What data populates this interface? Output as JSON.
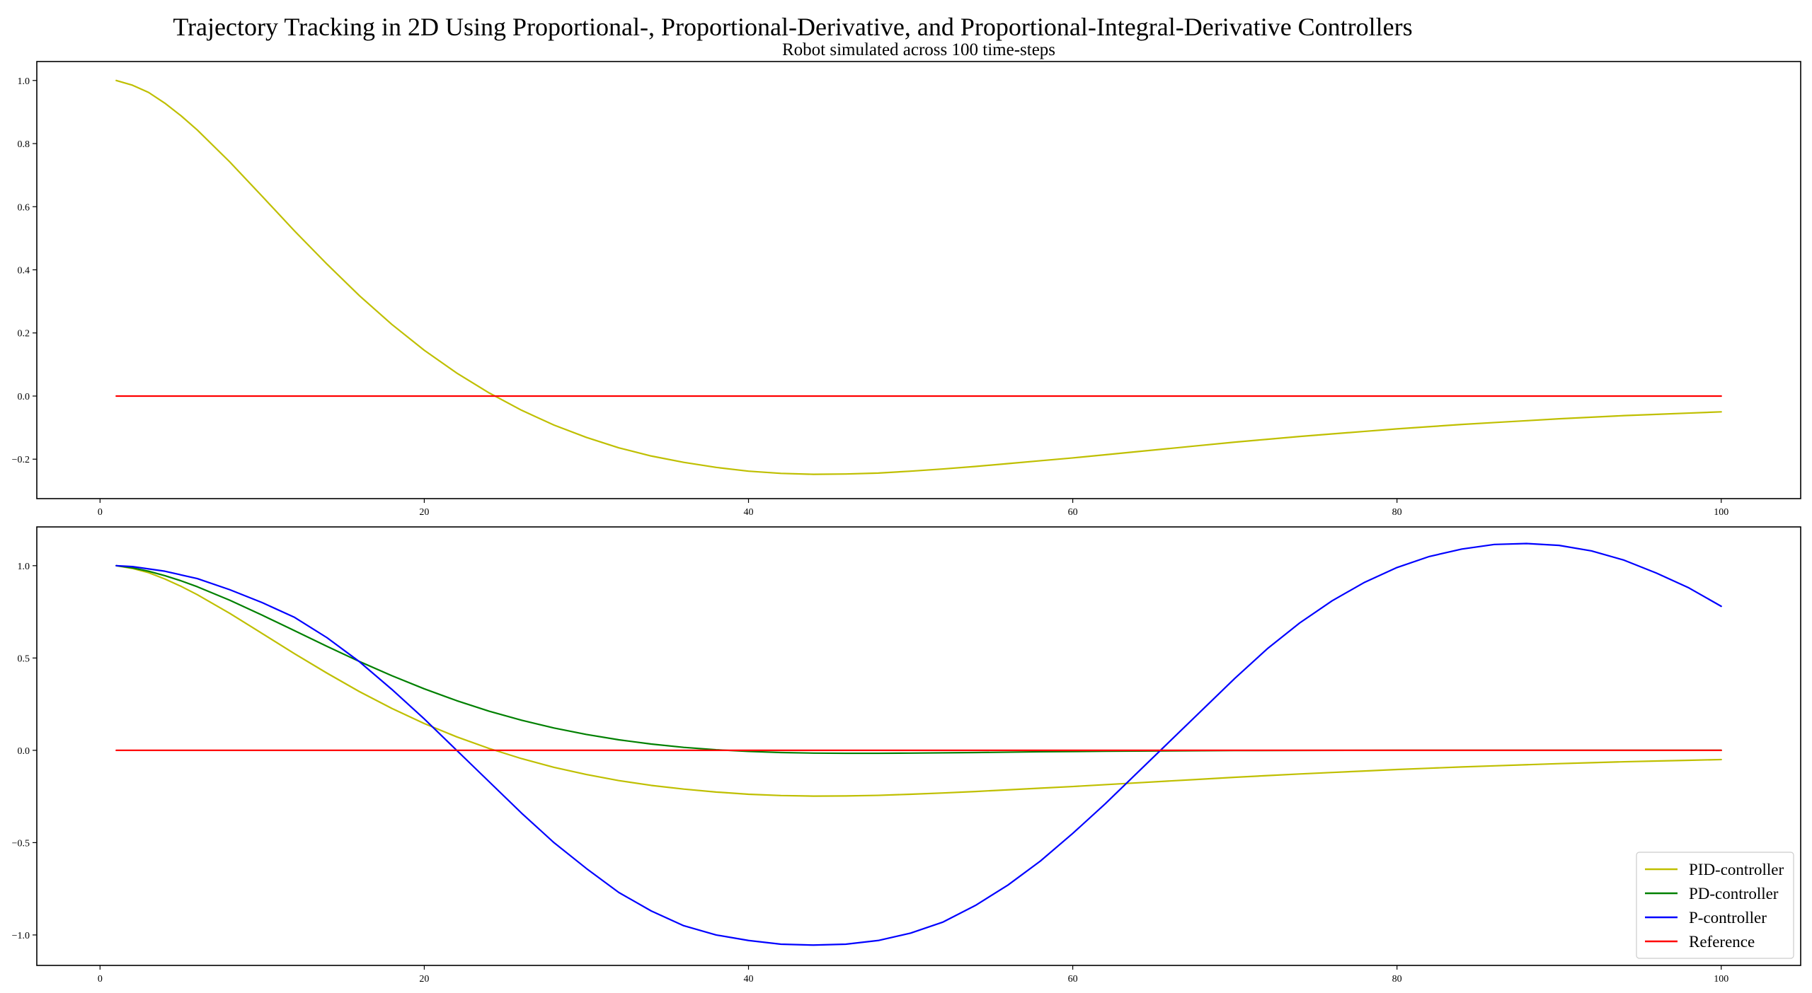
{
  "figure": {
    "title": "Trajectory Tracking in 2D Using Proportional-, Proportional-Derivative, and Proportional-Integral-Derivative Controllers",
    "subtitle": "Robot simulated across 100 time-steps"
  },
  "chart_data": [
    {
      "type": "line",
      "title": "",
      "xlabel": "",
      "ylabel": "",
      "xlim": [
        -3.9,
        104.9
      ],
      "ylim": [
        -0.325,
        1.06
      ],
      "xticks": [
        0,
        20,
        40,
        60,
        80,
        100
      ],
      "yticks": [
        -0.2,
        0.0,
        0.2,
        0.4,
        0.6,
        0.8,
        1.0
      ],
      "ytick_labels": [
        "−0.2",
        "0.0",
        "0.2",
        "0.4",
        "0.6",
        "0.8",
        "1.0"
      ],
      "grid": false,
      "legend": "none",
      "series": [
        {
          "color": "#bfbf00",
          "x": [
            1,
            2,
            3,
            4,
            5,
            6,
            8,
            10,
            12,
            14,
            16,
            18,
            20,
            22,
            24,
            26,
            28,
            30,
            32,
            34,
            36,
            38,
            40,
            42,
            44,
            46,
            48,
            50,
            52,
            54,
            56,
            58,
            60,
            62,
            64,
            66,
            68,
            70,
            72,
            74,
            76,
            78,
            80,
            82,
            84,
            86,
            88,
            90,
            92,
            94,
            96,
            98,
            100
          ],
          "y": [
            1.0,
            0.985,
            0.962,
            0.928,
            0.888,
            0.843,
            0.742,
            0.633,
            0.523,
            0.418,
            0.318,
            0.227,
            0.145,
            0.073,
            0.01,
            -0.045,
            -0.092,
            -0.131,
            -0.164,
            -0.19,
            -0.21,
            -0.226,
            -0.238,
            -0.245,
            -0.248,
            -0.247,
            -0.244,
            -0.238,
            -0.231,
            -0.223,
            -0.214,
            -0.205,
            -0.196,
            -0.186,
            -0.176,
            -0.166,
            -0.156,
            -0.146,
            -0.137,
            -0.128,
            -0.12,
            -0.112,
            -0.104,
            -0.097,
            -0.09,
            -0.084,
            -0.078,
            -0.072,
            -0.067,
            -0.062,
            -0.058,
            -0.054,
            -0.05
          ]
        },
        {
          "color": "#ff0000",
          "x": [
            1,
            100
          ],
          "y": [
            0.0,
            0.0
          ]
        }
      ]
    },
    {
      "type": "line",
      "title": "",
      "xlabel": "",
      "ylabel": "",
      "xlim": [
        -3.9,
        104.9
      ],
      "ylim": [
        -1.165,
        1.21
      ],
      "xticks": [
        0,
        20,
        40,
        60,
        80,
        100
      ],
      "yticks": [
        -1.0,
        -0.5,
        0.0,
        0.5,
        1.0
      ],
      "ytick_labels": [
        "−1.0",
        "−0.5",
        "0.0",
        "0.5",
        "1.0"
      ],
      "grid": false,
      "legend": "bottom-right",
      "series": [
        {
          "name": "PID-controller",
          "color": "#bfbf00",
          "x": [
            1,
            2,
            3,
            4,
            5,
            6,
            8,
            10,
            12,
            14,
            16,
            18,
            20,
            22,
            24,
            26,
            28,
            30,
            32,
            34,
            36,
            38,
            40,
            42,
            44,
            46,
            48,
            50,
            52,
            54,
            56,
            58,
            60,
            62,
            64,
            66,
            68,
            70,
            72,
            74,
            76,
            78,
            80,
            82,
            84,
            86,
            88,
            90,
            92,
            94,
            96,
            98,
            100
          ],
          "y": [
            1.0,
            0.985,
            0.962,
            0.928,
            0.888,
            0.843,
            0.742,
            0.633,
            0.523,
            0.418,
            0.318,
            0.227,
            0.145,
            0.073,
            0.01,
            -0.045,
            -0.092,
            -0.131,
            -0.164,
            -0.19,
            -0.21,
            -0.226,
            -0.238,
            -0.245,
            -0.248,
            -0.247,
            -0.244,
            -0.238,
            -0.231,
            -0.223,
            -0.214,
            -0.205,
            -0.196,
            -0.186,
            -0.176,
            -0.166,
            -0.156,
            -0.146,
            -0.137,
            -0.128,
            -0.12,
            -0.112,
            -0.104,
            -0.097,
            -0.09,
            -0.084,
            -0.078,
            -0.072,
            -0.067,
            -0.062,
            -0.058,
            -0.054,
            -0.05
          ]
        },
        {
          "name": "PD-controller",
          "color": "#008000",
          "x": [
            1,
            2,
            3,
            4,
            5,
            6,
            8,
            10,
            12,
            14,
            16,
            18,
            20,
            22,
            24,
            26,
            28,
            30,
            32,
            34,
            36,
            38,
            40,
            42,
            44,
            46,
            48,
            50,
            54,
            58,
            62,
            66,
            70,
            80,
            90,
            100
          ],
          "y": [
            1.0,
            0.988,
            0.97,
            0.946,
            0.918,
            0.886,
            0.813,
            0.732,
            0.648,
            0.563,
            0.481,
            0.404,
            0.333,
            0.269,
            0.212,
            0.163,
            0.121,
            0.086,
            0.057,
            0.034,
            0.016,
            0.003,
            -0.006,
            -0.012,
            -0.015,
            -0.016,
            -0.016,
            -0.015,
            -0.012,
            -0.008,
            -0.005,
            -0.003,
            -0.001,
            0.0,
            0.0,
            0.0
          ]
        },
        {
          "name": "P-controller",
          "color": "#0000ff",
          "x": [
            1,
            2,
            4,
            6,
            8,
            10,
            12,
            14,
            16,
            18,
            20,
            22,
            24,
            26,
            28,
            30,
            32,
            34,
            36,
            38,
            40,
            42,
            44,
            46,
            48,
            50,
            52,
            54,
            56,
            58,
            60,
            62,
            64,
            66,
            68,
            70,
            72,
            74,
            76,
            78,
            80,
            82,
            84,
            86,
            88,
            90,
            92,
            94,
            96,
            98,
            100
          ],
          "y": [
            1.0,
            0.995,
            0.97,
            0.93,
            0.87,
            0.8,
            0.72,
            0.61,
            0.48,
            0.33,
            0.17,
            0.0,
            -0.17,
            -0.34,
            -0.5,
            -0.64,
            -0.77,
            -0.87,
            -0.95,
            -1.0,
            -1.03,
            -1.05,
            -1.055,
            -1.05,
            -1.03,
            -0.99,
            -0.93,
            -0.84,
            -0.73,
            -0.6,
            -0.45,
            -0.29,
            -0.12,
            0.05,
            0.22,
            0.39,
            0.55,
            0.69,
            0.81,
            0.91,
            0.99,
            1.05,
            1.09,
            1.115,
            1.12,
            1.11,
            1.08,
            1.03,
            0.96,
            0.88,
            0.78
          ]
        },
        {
          "name": "Reference",
          "color": "#ff0000",
          "x": [
            1,
            100
          ],
          "y": [
            0.0,
            0.0
          ]
        }
      ]
    }
  ]
}
